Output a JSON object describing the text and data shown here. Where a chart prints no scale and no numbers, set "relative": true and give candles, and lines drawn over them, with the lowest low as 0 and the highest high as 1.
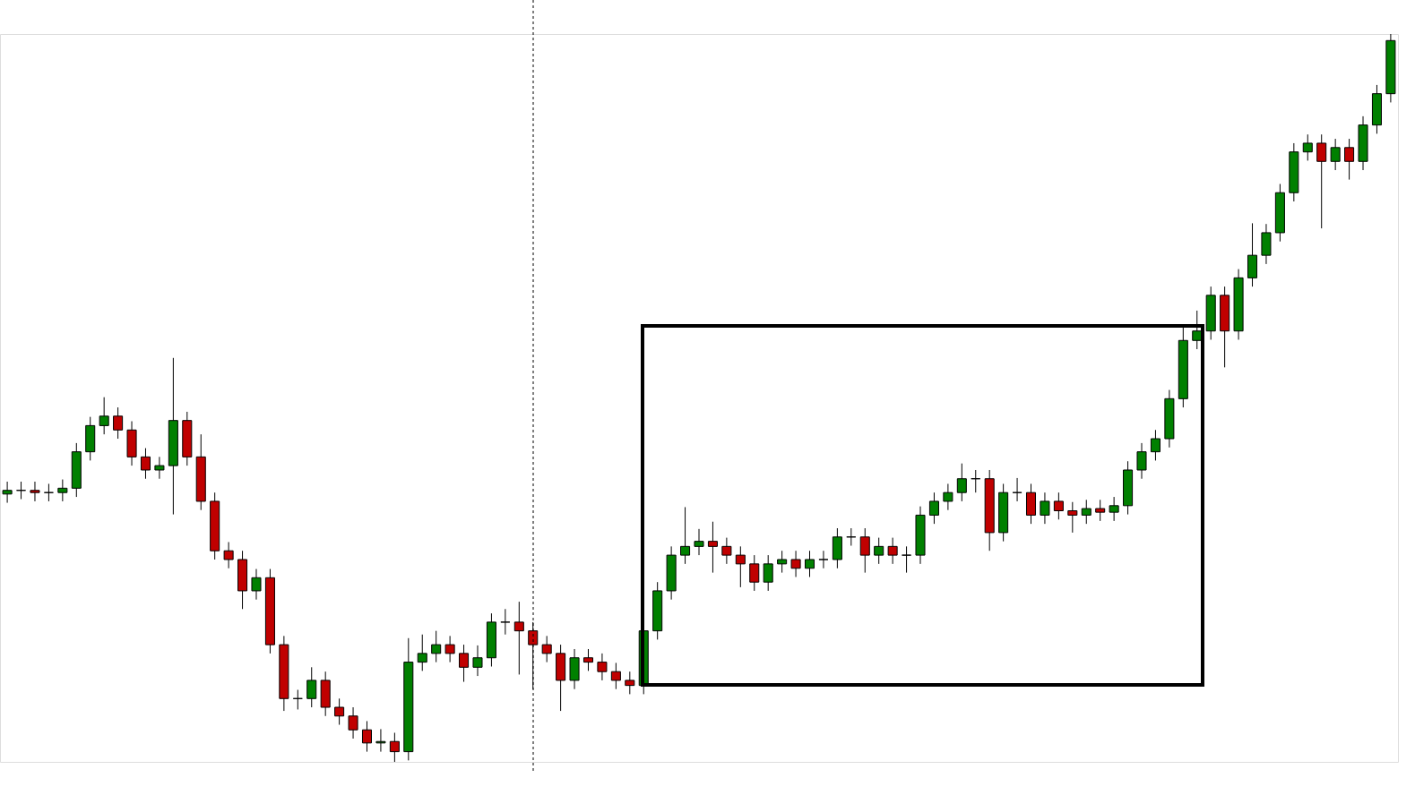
{
  "chart_data": {
    "type": "candlestick",
    "relative": true,
    "grid": false,
    "categories": [
      null,
      null,
      null,
      null,
      null,
      null,
      null,
      null,
      null,
      null,
      null,
      null,
      null,
      null,
      null,
      null,
      null,
      null,
      null,
      null,
      null,
      null,
      null,
      null,
      null,
      null,
      null,
      null,
      null,
      null,
      null,
      null,
      null,
      null,
      null,
      null,
      null,
      null,
      null,
      null,
      null,
      null,
      null,
      null,
      null,
      null,
      null,
      null,
      null,
      null,
      null,
      null,
      null,
      null,
      null,
      null,
      null,
      null,
      null,
      null,
      null,
      null,
      null,
      null,
      null,
      null,
      null,
      null,
      null,
      null,
      null,
      null,
      null,
      null,
      null,
      null,
      null,
      null,
      null,
      null,
      null,
      null,
      null,
      null,
      null,
      null,
      null,
      null,
      null,
      null,
      null,
      null,
      null,
      null,
      null,
      null,
      null,
      null,
      null,
      null,
      null
    ],
    "ohlc": [
      [
        0.368,
        0.385,
        0.356,
        0.373
      ],
      [
        0.373,
        0.385,
        0.361,
        0.373
      ],
      [
        0.373,
        0.385,
        0.358,
        0.37
      ],
      [
        0.37,
        0.382,
        0.358,
        0.37
      ],
      [
        0.37,
        0.388,
        0.358,
        0.376
      ],
      [
        0.376,
        0.438,
        0.364,
        0.426
      ],
      [
        0.426,
        0.474,
        0.414,
        0.462
      ],
      [
        0.462,
        0.501,
        0.45,
        0.475
      ],
      [
        0.475,
        0.487,
        0.444,
        0.456
      ],
      [
        0.456,
        0.468,
        0.407,
        0.419
      ],
      [
        0.419,
        0.431,
        0.389,
        0.401
      ],
      [
        0.401,
        0.419,
        0.389,
        0.407
      ],
      [
        0.407,
        0.555,
        0.34,
        0.469
      ],
      [
        0.469,
        0.481,
        0.407,
        0.419
      ],
      [
        0.419,
        0.45,
        0.346,
        0.358
      ],
      [
        0.358,
        0.37,
        0.278,
        0.29
      ],
      [
        0.29,
        0.302,
        0.266,
        0.278
      ],
      [
        0.278,
        0.29,
        0.21,
        0.235
      ],
      [
        0.235,
        0.265,
        0.223,
        0.253
      ],
      [
        0.253,
        0.265,
        0.149,
        0.161
      ],
      [
        0.161,
        0.173,
        0.07,
        0.087
      ],
      [
        0.087,
        0.099,
        0.072,
        0.087
      ],
      [
        0.087,
        0.13,
        0.075,
        0.112
      ],
      [
        0.112,
        0.124,
        0.063,
        0.075
      ],
      [
        0.075,
        0.087,
        0.051,
        0.063
      ],
      [
        0.063,
        0.075,
        0.032,
        0.044
      ],
      [
        0.044,
        0.056,
        0.014,
        0.026
      ],
      [
        0.026,
        0.045,
        0.014,
        0.028
      ],
      [
        0.028,
        0.04,
        0.0,
        0.014
      ],
      [
        0.014,
        0.17,
        0.002,
        0.137
      ],
      [
        0.137,
        0.175,
        0.125,
        0.149
      ],
      [
        0.149,
        0.18,
        0.137,
        0.161
      ],
      [
        0.161,
        0.173,
        0.137,
        0.149
      ],
      [
        0.149,
        0.161,
        0.11,
        0.13
      ],
      [
        0.13,
        0.16,
        0.118,
        0.143
      ],
      [
        0.143,
        0.204,
        0.131,
        0.192
      ],
      [
        0.192,
        0.21,
        0.175,
        0.192
      ],
      [
        0.192,
        0.22,
        0.12,
        0.18
      ],
      [
        0.18,
        0.192,
        0.1,
        0.161
      ],
      [
        0.161,
        0.173,
        0.137,
        0.149
      ],
      [
        0.149,
        0.161,
        0.07,
        0.112
      ],
      [
        0.112,
        0.155,
        0.1,
        0.143
      ],
      [
        0.143,
        0.155,
        0.125,
        0.137
      ],
      [
        0.137,
        0.149,
        0.112,
        0.124
      ],
      [
        0.124,
        0.136,
        0.1,
        0.112
      ],
      [
        0.112,
        0.124,
        0.093,
        0.105
      ],
      [
        0.105,
        0.192,
        0.093,
        0.18
      ],
      [
        0.18,
        0.247,
        0.168,
        0.235
      ],
      [
        0.235,
        0.296,
        0.223,
        0.284
      ],
      [
        0.284,
        0.35,
        0.272,
        0.296
      ],
      [
        0.296,
        0.32,
        0.284,
        0.303
      ],
      [
        0.303,
        0.33,
        0.26,
        0.296
      ],
      [
        0.296,
        0.308,
        0.272,
        0.284
      ],
      [
        0.284,
        0.296,
        0.24,
        0.272
      ],
      [
        0.272,
        0.284,
        0.235,
        0.247
      ],
      [
        0.247,
        0.284,
        0.235,
        0.272
      ],
      [
        0.272,
        0.29,
        0.26,
        0.278
      ],
      [
        0.278,
        0.29,
        0.254,
        0.266
      ],
      [
        0.266,
        0.29,
        0.254,
        0.278
      ],
      [
        0.278,
        0.29,
        0.266,
        0.278
      ],
      [
        0.278,
        0.321,
        0.266,
        0.309
      ],
      [
        0.309,
        0.321,
        0.297,
        0.309
      ],
      [
        0.309,
        0.321,
        0.26,
        0.284
      ],
      [
        0.284,
        0.308,
        0.272,
        0.296
      ],
      [
        0.296,
        0.308,
        0.272,
        0.284
      ],
      [
        0.284,
        0.296,
        0.26,
        0.284
      ],
      [
        0.284,
        0.351,
        0.272,
        0.339
      ],
      [
        0.339,
        0.37,
        0.327,
        0.358
      ],
      [
        0.358,
        0.382,
        0.346,
        0.37
      ],
      [
        0.37,
        0.41,
        0.358,
        0.389
      ],
      [
        0.389,
        0.401,
        0.37,
        0.389
      ],
      [
        0.389,
        0.401,
        0.29,
        0.315
      ],
      [
        0.315,
        0.382,
        0.303,
        0.37
      ],
      [
        0.37,
        0.39,
        0.358,
        0.37
      ],
      [
        0.37,
        0.382,
        0.327,
        0.339
      ],
      [
        0.339,
        0.37,
        0.327,
        0.358
      ],
      [
        0.358,
        0.37,
        0.333,
        0.345
      ],
      [
        0.345,
        0.357,
        0.315,
        0.339
      ],
      [
        0.339,
        0.36,
        0.327,
        0.348
      ],
      [
        0.348,
        0.36,
        0.331,
        0.343
      ],
      [
        0.343,
        0.364,
        0.331,
        0.352
      ],
      [
        0.352,
        0.413,
        0.34,
        0.401
      ],
      [
        0.401,
        0.438,
        0.389,
        0.426
      ],
      [
        0.426,
        0.456,
        0.414,
        0.444
      ],
      [
        0.444,
        0.511,
        0.432,
        0.499
      ],
      [
        0.499,
        0.6,
        0.487,
        0.579
      ],
      [
        0.579,
        0.62,
        0.567,
        0.592
      ],
      [
        0.592,
        0.653,
        0.58,
        0.641
      ],
      [
        0.641,
        0.653,
        0.542,
        0.592
      ],
      [
        0.592,
        0.677,
        0.58,
        0.665
      ],
      [
        0.665,
        0.74,
        0.653,
        0.696
      ],
      [
        0.696,
        0.739,
        0.684,
        0.727
      ],
      [
        0.727,
        0.794,
        0.715,
        0.782
      ],
      [
        0.782,
        0.85,
        0.77,
        0.838
      ],
      [
        0.838,
        0.862,
        0.826,
        0.85
      ],
      [
        0.85,
        0.862,
        0.733,
        0.825
      ],
      [
        0.825,
        0.856,
        0.813,
        0.844
      ],
      [
        0.844,
        0.856,
        0.8,
        0.825
      ],
      [
        0.825,
        0.887,
        0.813,
        0.875
      ],
      [
        0.875,
        0.93,
        0.863,
        0.918
      ],
      [
        0.918,
        1.0,
        0.906,
        0.991
      ]
    ],
    "colors": [
      "#008000",
      "#000000",
      "#c00000",
      "#000000",
      "#008000",
      "#008000",
      "#008000",
      "#008000",
      "#c00000",
      "#c00000",
      "#c00000",
      "#008000",
      "#008000",
      "#c00000",
      "#c00000",
      "#c00000",
      "#c00000",
      "#c00000",
      "#008000",
      "#c00000",
      "#c00000",
      "#000000",
      "#008000",
      "#c00000",
      "#c00000",
      "#c00000",
      "#c00000",
      "#008000",
      "#c00000",
      "#008000",
      "#008000",
      "#008000",
      "#c00000",
      "#c00000",
      "#008000",
      "#008000",
      "#000000",
      "#c00000",
      "#c00000",
      "#c00000",
      "#c00000",
      "#008000",
      "#c00000",
      "#c00000",
      "#c00000",
      "#c00000",
      "#008000",
      "#008000",
      "#008000",
      "#008000",
      "#008000",
      "#c00000",
      "#c00000",
      "#c00000",
      "#c00000",
      "#008000",
      "#008000",
      "#c00000",
      "#008000",
      "#000000",
      "#008000",
      "#000000",
      "#c00000",
      "#008000",
      "#c00000",
      "#000000",
      "#008000",
      "#008000",
      "#008000",
      "#008000",
      "#000000",
      "#c00000",
      "#008000",
      "#000000",
      "#c00000",
      "#008000",
      "#c00000",
      "#c00000",
      "#008000",
      "#c00000",
      "#008000",
      "#008000",
      "#008000",
      "#008000",
      "#008000",
      "#008000",
      "#008000",
      "#008000",
      "#c00000",
      "#008000",
      "#008000",
      "#008000",
      "#008000",
      "#008000",
      "#008000",
      "#c00000",
      "#008000",
      "#c00000",
      "#008000",
      "#008000",
      "#008000"
    ]
  }
}
